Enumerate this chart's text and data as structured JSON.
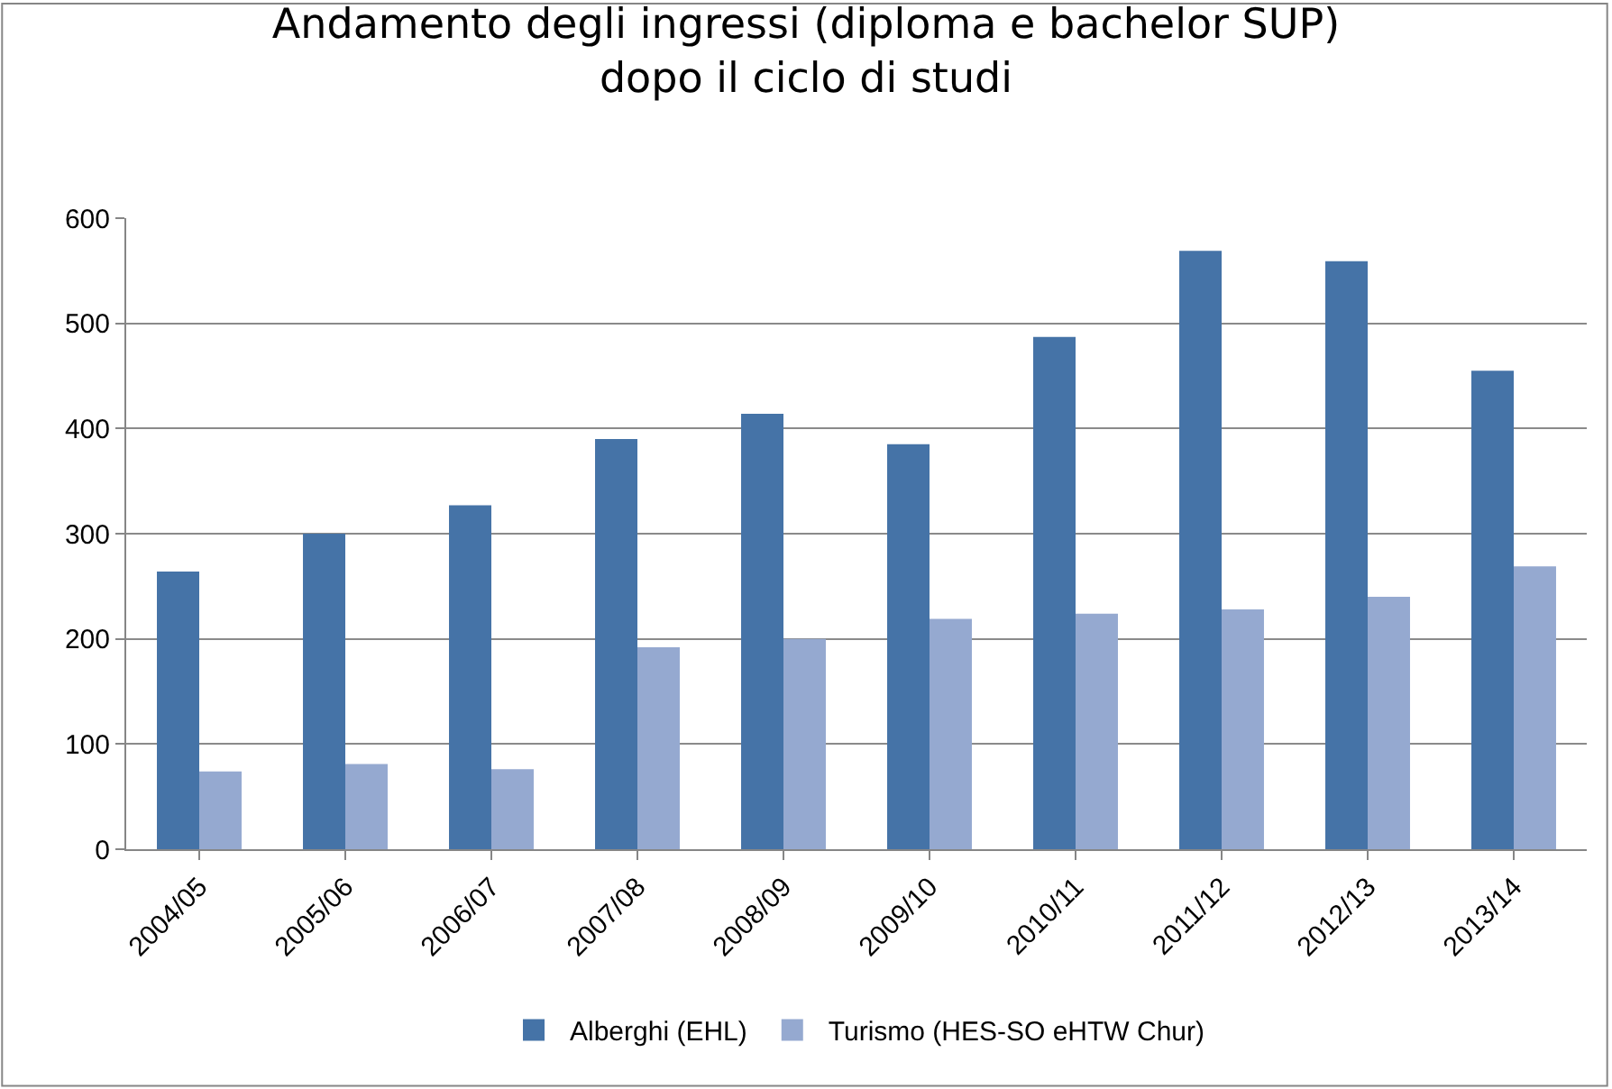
{
  "chart_data": {
    "type": "bar",
    "title": "Andamento degli ingressi (diploma e bachelor SUP)\ndopo il ciclo di studi",
    "categories": [
      "2004/05",
      "2005/06",
      "2006/07",
      "2007/08",
      "2008/09",
      "2009/10",
      "2010/11",
      "2011/12",
      "2012/13",
      "2013/14"
    ],
    "series": [
      {
        "name": "Alberghi (EHL)",
        "color": "#4573a7",
        "values": [
          264,
          300,
          327,
          390,
          414,
          385,
          487,
          569,
          559,
          455
        ]
      },
      {
        "name": "Turismo (HES-SO eHTW Chur)",
        "color": "#95a9d0",
        "values": [
          74,
          81,
          76,
          192,
          200,
          219,
          224,
          228,
          240,
          269
        ]
      }
    ],
    "ylim": [
      0,
      600
    ],
    "yticks": [
      0,
      100,
      200,
      300,
      400,
      500,
      600
    ],
    "grid": "y",
    "legend": "bottom"
  }
}
